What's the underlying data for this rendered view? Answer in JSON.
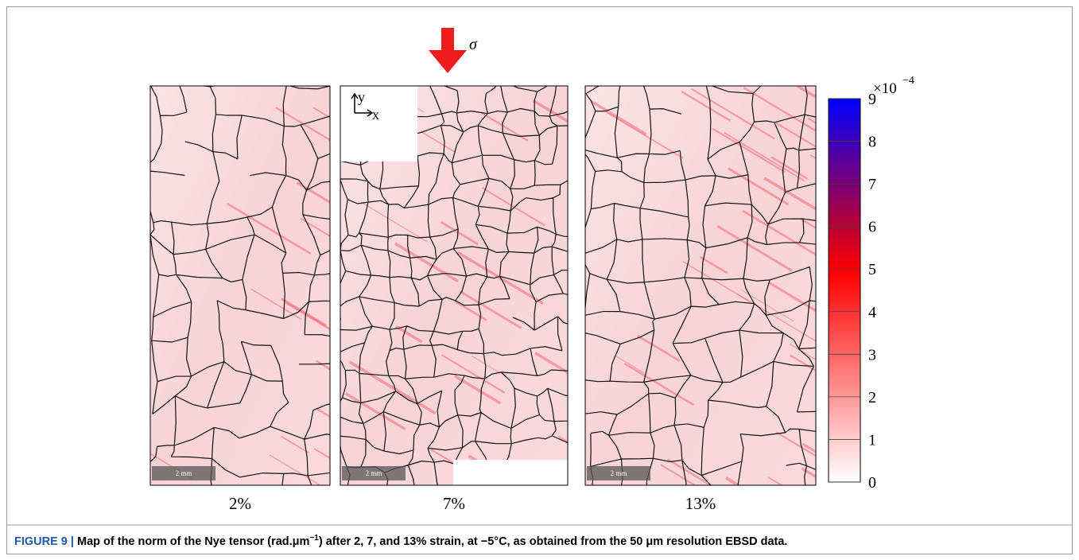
{
  "figure": {
    "stress_label": "σ",
    "axis_labels": {
      "y": "y",
      "x": "x"
    },
    "panels": [
      {
        "label": "2%",
        "scale_bar": "2 mm"
      },
      {
        "label": "7%",
        "scale_bar": "2 mm"
      },
      {
        "label": "13%",
        "scale_bar": "2 mm"
      }
    ],
    "colorbar": {
      "multiplier": "×10",
      "exponent": "−4",
      "ticks": [
        0,
        1,
        2,
        3,
        4,
        5,
        6,
        7,
        8,
        9
      ]
    }
  },
  "caption": {
    "label": "FIGURE 9 |",
    "text_1": "Map of the norm of the Nye tensor (rad.μm",
    "superscript": "−1",
    "text_2": ") after 2, 7, and 13% strain, at −5°C, as obtained from the 50 μm resolution EBSD data."
  }
}
